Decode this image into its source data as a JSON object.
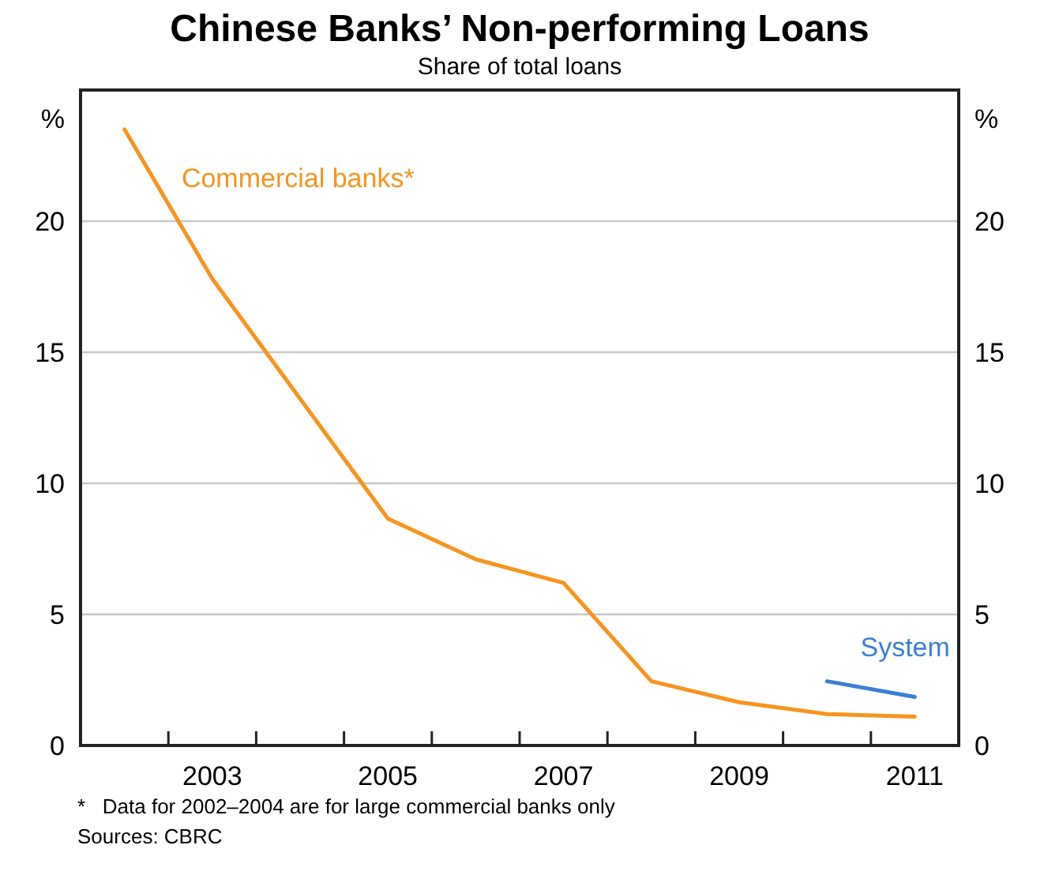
{
  "chart_data": {
    "type": "line",
    "title": "Chinese Banks’ Non-performing Loans",
    "subtitle": "Share of total loans",
    "ylabel": "%",
    "y2label": "%",
    "x": [
      2002.5,
      2003.5,
      2005.5,
      2006.5,
      2007.5,
      2008.5,
      2009.5,
      2010.5,
      2011.5
    ],
    "series": [
      {
        "name": "Commercial banks*",
        "color": "#f7941d",
        "values": [
          23.5,
          17.8,
          8.65,
          7.1,
          6.2,
          2.45,
          1.65,
          1.2,
          1.1
        ]
      },
      {
        "name": "System",
        "color": "#3a7fd5",
        "x": [
          2010.5,
          2011.5
        ],
        "values": [
          2.45,
          1.85
        ]
      }
    ],
    "xlim": [
      2002,
      2012
    ],
    "xticks": [
      {
        "value": 2003,
        "label": null
      },
      {
        "value": 2003.5,
        "label": "2003"
      },
      {
        "value": 2004,
        "label": null
      },
      {
        "value": 2005,
        "label": null
      },
      {
        "value": 2005.5,
        "label": "2005"
      },
      {
        "value": 2006,
        "label": null
      },
      {
        "value": 2007,
        "label": null
      },
      {
        "value": 2007.5,
        "label": "2007"
      },
      {
        "value": 2008,
        "label": null
      },
      {
        "value": 2009,
        "label": null
      },
      {
        "value": 2009.5,
        "label": "2009"
      },
      {
        "value": 2010,
        "label": null
      },
      {
        "value": 2011,
        "label": null
      },
      {
        "value": 2011.5,
        "label": "2011"
      }
    ],
    "ylim": [
      0,
      25
    ],
    "yticks": [
      0,
      5,
      10,
      15,
      20
    ],
    "y2lim": [
      0,
      25
    ],
    "y2ticks": [
      0,
      5,
      10,
      15,
      20
    ],
    "grid": "y",
    "marker": "none",
    "line_style": "solid",
    "annotations": [
      "*   Data for 2002–2004 are for large commercial banks only",
      "Sources: CBRC"
    ]
  }
}
